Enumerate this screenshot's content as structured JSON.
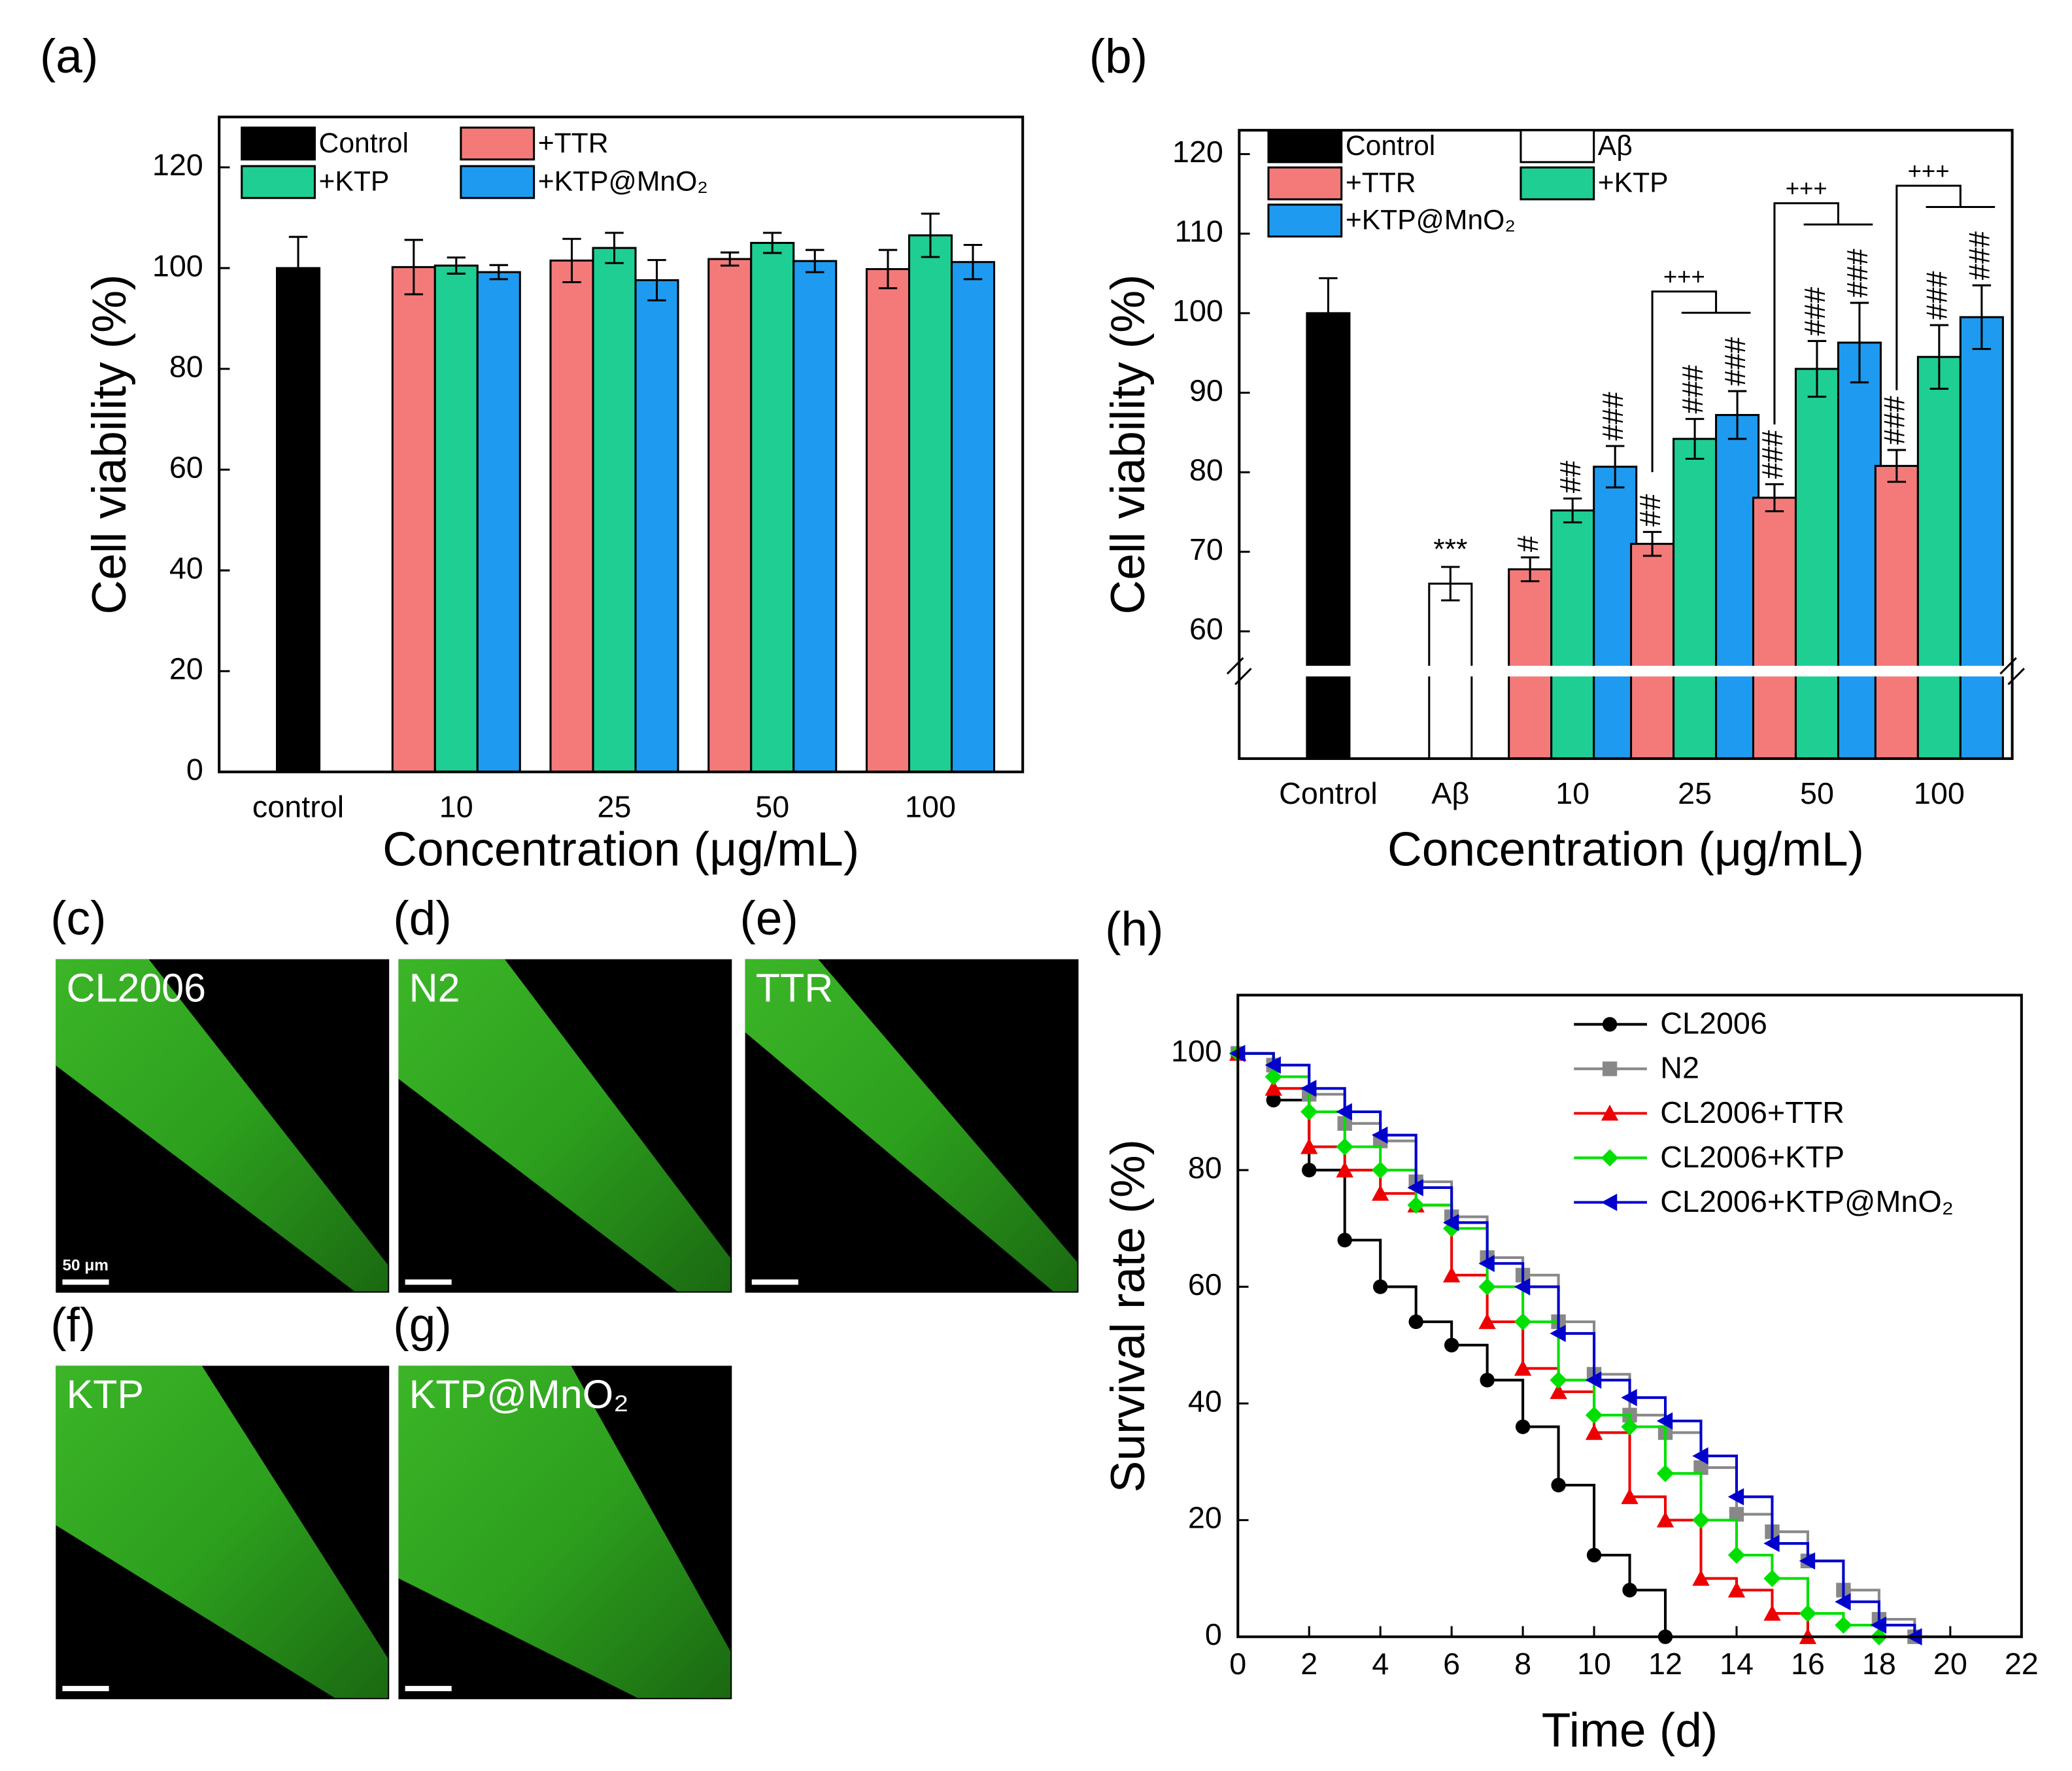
{
  "chart_data": [
    {
      "type": "bar",
      "panel_label": "(a)",
      "xlabel": "Concentration (μg/mL)",
      "ylabel": "Cell viability (%)",
      "categories": [
        "control",
        "10",
        "25",
        "50",
        "100"
      ],
      "ylim": [
        0,
        130
      ],
      "yticks": [
        0,
        20,
        40,
        60,
        80,
        100,
        120
      ],
      "legend_columns": 2,
      "series": [
        {
          "name": "Control",
          "color": "#000000",
          "values": [
            100,
            null,
            null,
            null,
            null
          ],
          "errors": [
            6.2,
            null,
            null,
            null,
            null
          ]
        },
        {
          "name": "+TTR",
          "color": "#f47a7a",
          "values": [
            null,
            100.2,
            101.5,
            101.8,
            99.8
          ],
          "errors": [
            null,
            5.4,
            4.3,
            1.3,
            3.8
          ]
        },
        {
          "name": "+KTP",
          "color": "#1fce92",
          "values": [
            null,
            100.5,
            104,
            105,
            106.5
          ],
          "errors": [
            null,
            1.6,
            3,
            2,
            4.3
          ]
        },
        {
          "name": "+KTP@MnO₂",
          "color": "#1e9bf0",
          "values": [
            null,
            99.2,
            97.6,
            101.4,
            101.2
          ],
          "errors": [
            null,
            1.4,
            4,
            2.2,
            3.4
          ]
        }
      ]
    },
    {
      "type": "bar",
      "panel_label": "(b)",
      "xlabel": "Concentration (μg/mL)",
      "ylabel": "Cell viability (%)",
      "categories": [
        "Control",
        "Aβ",
        "10",
        "25",
        "50",
        "100"
      ],
      "ylim": [
        44,
        123
      ],
      "yticks": [
        60,
        70,
        80,
        90,
        100,
        110,
        120
      ],
      "axis_break": 55,
      "legend_columns": 2,
      "series": [
        {
          "name": "Control",
          "color": "#000000",
          "values": [
            100,
            null,
            null,
            null,
            null,
            null
          ],
          "errors": [
            4.4,
            null,
            null,
            null,
            null,
            null
          ]
        },
        {
          "name": "Aβ",
          "color": "#ffffff",
          "values": [
            null,
            66,
            null,
            null,
            null,
            null
          ],
          "errors": [
            null,
            2.1,
            null,
            null,
            null,
            null
          ],
          "sig": [
            null,
            "***",
            null,
            null,
            null,
            null
          ]
        },
        {
          "name": "+TTR",
          "color": "#f47a7a",
          "values": [
            null,
            null,
            67.8,
            71,
            76.8,
            80.8
          ],
          "errors": [
            null,
            null,
            1.5,
            1.5,
            1.7,
            2
          ],
          "sig": [
            null,
            null,
            "#",
            "##",
            "###",
            "###"
          ]
        },
        {
          "name": "+KTP",
          "color": "#1fce92",
          "values": [
            null,
            null,
            75.2,
            84.2,
            93,
            94.5
          ],
          "errors": [
            null,
            null,
            1.5,
            2.5,
            3.5,
            4
          ],
          "sig": [
            null,
            null,
            "##",
            "###",
            "###",
            "###"
          ]
        },
        {
          "name": "+KTP@MnO₂",
          "color": "#1e9bf0",
          "values": [
            null,
            null,
            80.7,
            87.2,
            96.3,
            99.5
          ],
          "errors": [
            null,
            null,
            2.6,
            3,
            5,
            4
          ],
          "sig": [
            null,
            null,
            "###",
            "###",
            "###",
            "###"
          ]
        }
      ],
      "brackets": [
        {
          "category": 3,
          "text": "+++"
        },
        {
          "category": 4,
          "text": "+++"
        },
        {
          "category": 5,
          "text": "+++"
        }
      ]
    },
    {
      "type": "step",
      "panel_label": "(h)",
      "xlabel": "Time (d)",
      "ylabel": "Survival rate (%)",
      "xlim": [
        0,
        22
      ],
      "xticks": [
        0,
        2,
        4,
        6,
        8,
        10,
        12,
        14,
        16,
        18,
        20,
        22
      ],
      "ylim": [
        0,
        110
      ],
      "yticks": [
        0,
        20,
        40,
        60,
        80,
        100
      ],
      "series": [
        {
          "name": "CL2006",
          "color": "#000000",
          "marker": "circle",
          "x": [
            0,
            1,
            2,
            3,
            4,
            5,
            6,
            7,
            8,
            9,
            10,
            11,
            12
          ],
          "values": [
            100,
            92,
            80,
            68,
            60,
            54,
            50,
            44,
            36,
            26,
            14,
            8,
            0
          ]
        },
        {
          "name": "N2",
          "color": "#888888",
          "marker": "square",
          "x": [
            0,
            1,
            2,
            3,
            4,
            5,
            6,
            7,
            8,
            9,
            10,
            11,
            12,
            13,
            14,
            15,
            16,
            17,
            18,
            19
          ],
          "values": [
            100,
            98,
            93,
            88,
            85,
            78,
            72,
            65,
            62,
            54,
            45,
            38,
            35,
            29,
            21,
            18,
            13,
            8,
            3,
            0
          ]
        },
        {
          "name": "CL2006+TTR",
          "color": "#ee0000",
          "marker": "triangle",
          "x": [
            0,
            1,
            2,
            3,
            4,
            5,
            6,
            7,
            8,
            9,
            10,
            11,
            12,
            13,
            14,
            15,
            16
          ],
          "values": [
            100,
            94,
            84,
            80,
            76,
            74,
            62,
            54,
            46,
            42,
            35,
            24,
            20,
            10,
            8,
            4,
            0
          ]
        },
        {
          "name": "CL2006+KTP",
          "color": "#00e000",
          "marker": "diamond",
          "x": [
            0,
            1,
            2,
            3,
            4,
            5,
            6,
            7,
            8,
            9,
            10,
            11,
            12,
            13,
            14,
            15,
            16,
            17,
            18
          ],
          "values": [
            100,
            96,
            90,
            84,
            80,
            74,
            70,
            60,
            54,
            44,
            38,
            36,
            28,
            20,
            14,
            10,
            4,
            2,
            0
          ]
        },
        {
          "name": "CL2006+KTP@MnO₂",
          "color": "#0000cc",
          "marker": "triangle-left",
          "x": [
            0,
            1,
            2,
            3,
            4,
            5,
            6,
            7,
            8,
            9,
            10,
            11,
            12,
            13,
            14,
            15,
            16,
            17,
            18,
            19
          ],
          "values": [
            100,
            98,
            94,
            90,
            86,
            77,
            71,
            64,
            60,
            52,
            44,
            41,
            37,
            31,
            24,
            16,
            13,
            6,
            2,
            0
          ]
        }
      ]
    }
  ],
  "micrographs": [
    {
      "panel_label": "(c)",
      "label": "CL2006",
      "scale_label": "50 μm"
    },
    {
      "panel_label": "(d)",
      "label": "N2"
    },
    {
      "panel_label": "(e)",
      "label": "TTR"
    },
    {
      "panel_label": "(f)",
      "label": "KTP"
    },
    {
      "panel_label": "(g)",
      "label": "KTP@MnO₂"
    }
  ]
}
